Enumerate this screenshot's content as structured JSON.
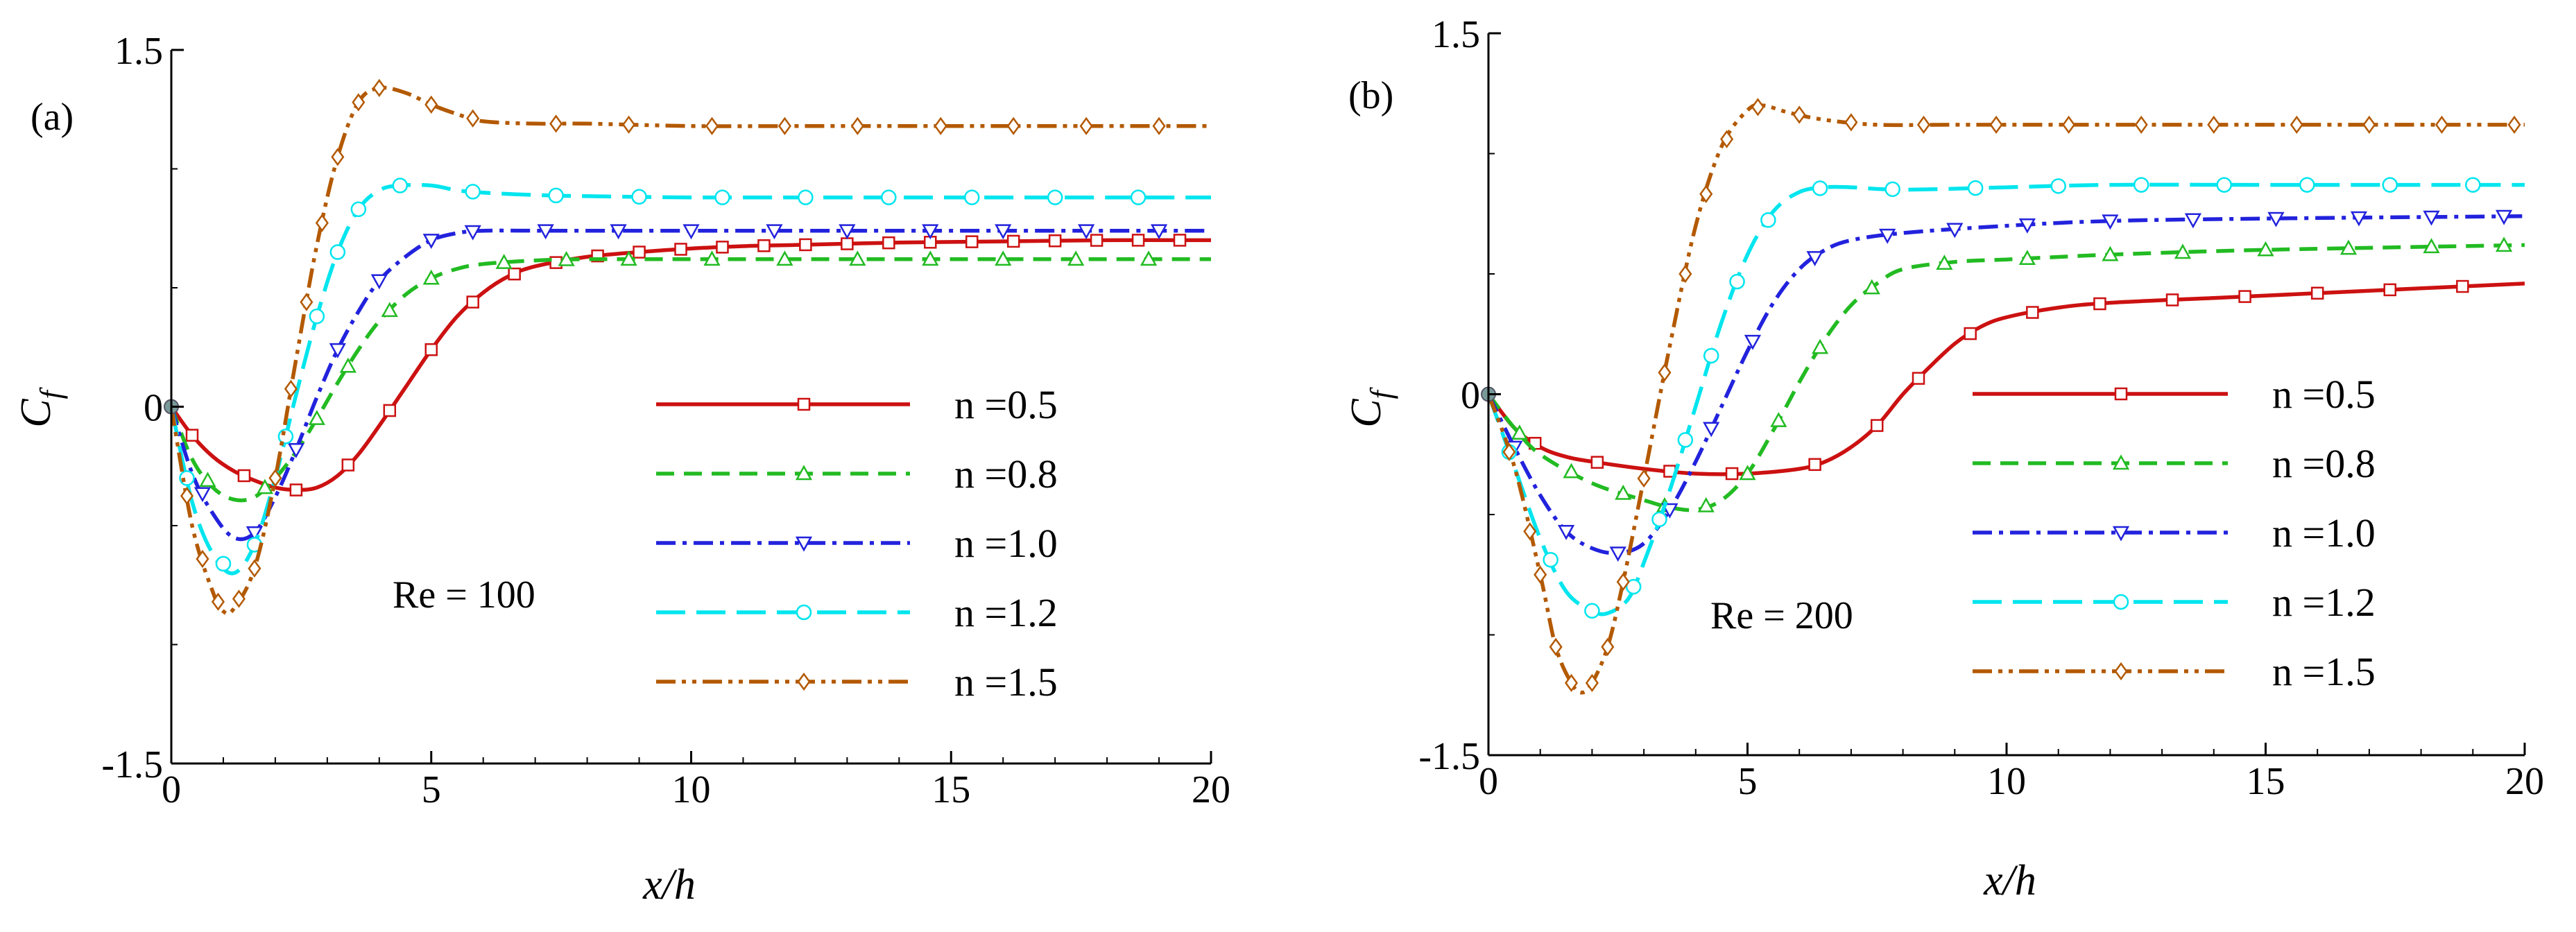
{
  "chart_data": [
    {
      "type": "line",
      "panel_label": "(a)",
      "annotation": "Re = 100",
      "xlabel": "x/h",
      "ylabel_main": "C",
      "ylabel_sub": "f",
      "xlim": [
        0,
        20
      ],
      "ylim": [
        -1.5,
        1.5
      ],
      "xticks": [
        0,
        5,
        10,
        15,
        20
      ],
      "yticks": [
        -1.5,
        0,
        1.5
      ],
      "xtick_labels": [
        "0",
        "5",
        "10",
        "15",
        "20"
      ],
      "ytick_labels": [
        "-1.5",
        "0",
        "1.5"
      ],
      "legend_position": "center-right",
      "series": [
        {
          "name": "n =0.5",
          "color": "#cc1111",
          "dash": "solid",
          "marker": "square",
          "x": [
            0,
            0.4,
            0.8,
            1.2,
            1.6,
            2.0,
            2.4,
            2.8,
            3.2,
            3.6,
            4.0,
            4.5,
            5.0,
            5.5,
            6.0,
            6.5,
            7.0,
            8.0,
            9.0,
            10,
            11,
            12,
            14,
            16,
            18,
            20
          ],
          "y": [
            0,
            -0.12,
            -0.21,
            -0.27,
            -0.31,
            -0.34,
            -0.35,
            -0.34,
            -0.29,
            -0.2,
            -0.08,
            0.08,
            0.24,
            0.38,
            0.48,
            0.55,
            0.59,
            0.63,
            0.65,
            0.665,
            0.675,
            0.68,
            0.69,
            0.695,
            0.7,
            0.7
          ],
          "marker_x": [
            0.4,
            1.4,
            2.4,
            3.4,
            4.2,
            5.0,
            5.8,
            6.6,
            7.4,
            8.2,
            9.0,
            9.8,
            10.6,
            11.4,
            12.2,
            13.0,
            13.8,
            14.6,
            15.4,
            16.2,
            17.0,
            17.8,
            18.6,
            19.4
          ]
        },
        {
          "name": "n =0.8",
          "color": "#22bb22",
          "dash": "dashed",
          "marker": "triangle-up",
          "x": [
            0,
            0.4,
            0.8,
            1.2,
            1.6,
            2.0,
            2.4,
            2.8,
            3.2,
            3.6,
            4.0,
            4.5,
            5.0,
            5.5,
            6.0,
            7.0,
            8.0,
            10,
            12,
            15,
            20
          ],
          "y": [
            0,
            -0.22,
            -0.34,
            -0.39,
            -0.38,
            -0.3,
            -0.19,
            -0.05,
            0.1,
            0.24,
            0.36,
            0.47,
            0.54,
            0.58,
            0.6,
            0.615,
            0.62,
            0.62,
            0.62,
            0.62,
            0.62
          ],
          "marker_x": [
            0.7,
            1.8,
            2.8,
            3.4,
            4.2,
            5.0,
            6.4,
            7.6,
            8.8,
            10.4,
            11.8,
            13.2,
            14.6,
            16.0,
            17.4,
            18.8
          ]
        },
        {
          "name": "n =1.0",
          "color": "#2222dd",
          "dash": "dashdot",
          "marker": "triangle-down",
          "x": [
            0,
            0.4,
            0.8,
            1.2,
            1.6,
            2.0,
            2.4,
            2.8,
            3.2,
            3.6,
            4.0,
            4.5,
            5.0,
            5.5,
            6.0,
            7.0,
            8.0,
            10,
            12,
            15,
            20
          ],
          "y": [
            0,
            -0.28,
            -0.45,
            -0.55,
            -0.53,
            -0.38,
            -0.18,
            0.04,
            0.24,
            0.4,
            0.53,
            0.63,
            0.7,
            0.73,
            0.74,
            0.74,
            0.74,
            0.74,
            0.74,
            0.74,
            0.74
          ],
          "marker_x": [
            0.6,
            1.6,
            2.4,
            3.2,
            4.0,
            5.0,
            5.8,
            7.2,
            8.6,
            10.0,
            11.6,
            13.0,
            14.6,
            16.0,
            17.6,
            19.0
          ]
        },
        {
          "name": "n =1.2",
          "color": "#00e5ee",
          "dash": "longdash",
          "marker": "circle",
          "x": [
            0,
            0.4,
            0.8,
            1.2,
            1.6,
            2.0,
            2.4,
            2.8,
            3.2,
            3.6,
            4.0,
            4.4,
            5.0,
            5.5,
            6.0,
            7.0,
            8.0,
            10,
            12,
            15,
            20
          ],
          "y": [
            0,
            -0.4,
            -0.62,
            -0.7,
            -0.58,
            -0.3,
            0.05,
            0.38,
            0.65,
            0.83,
            0.91,
            0.93,
            0.93,
            0.91,
            0.9,
            0.89,
            0.885,
            0.88,
            0.88,
            0.88,
            0.88
          ],
          "marker_x": [
            0.3,
            1.0,
            1.6,
            2.2,
            2.8,
            3.2,
            3.6,
            4.4,
            5.8,
            7.4,
            9.0,
            10.6,
            12.2,
            13.8,
            15.4,
            17.0,
            18.6
          ]
        },
        {
          "name": "n =1.5",
          "color": "#b35900",
          "dash": "dashdotdot",
          "marker": "diamond",
          "x": [
            0,
            0.4,
            0.8,
            1.0,
            1.2,
            1.6,
            2.0,
            2.4,
            2.8,
            3.2,
            3.6,
            4.0,
            4.5,
            5.0,
            5.5,
            6.0,
            7.0,
            8.0,
            10,
            12,
            15,
            20
          ],
          "y": [
            0,
            -0.5,
            -0.78,
            -0.86,
            -0.85,
            -0.68,
            -0.3,
            0.2,
            0.68,
            1.05,
            1.28,
            1.34,
            1.32,
            1.27,
            1.23,
            1.2,
            1.19,
            1.19,
            1.18,
            1.18,
            1.18,
            1.18
          ],
          "marker_x": [
            0.3,
            0.6,
            0.9,
            1.3,
            1.6,
            2.0,
            2.3,
            2.6,
            2.9,
            3.2,
            3.6,
            4.0,
            5.0,
            5.8,
            7.4,
            8.8,
            10.4,
            11.8,
            13.2,
            14.8,
            16.2,
            17.6,
            19.0
          ]
        }
      ]
    },
    {
      "type": "line",
      "panel_label": "(b)",
      "annotation": "Re = 200",
      "xlabel": "x/h",
      "ylabel_main": "C",
      "ylabel_sub": "f",
      "xlim": [
        0,
        20
      ],
      "ylim": [
        -1.5,
        1.5
      ],
      "xticks": [
        0,
        5,
        10,
        15,
        20
      ],
      "yticks": [
        -1.5,
        0,
        1.5
      ],
      "xtick_labels": [
        "0",
        "5",
        "10",
        "15",
        "20"
      ],
      "ytick_labels": [
        "-1.5",
        "0",
        "1.5"
      ],
      "legend_position": "center-right",
      "series": [
        {
          "name": "n =0.5",
          "color": "#cc1111",
          "dash": "solid",
          "marker": "square",
          "x": [
            0,
            0.5,
            1.0,
            1.5,
            2.0,
            3.0,
            4.0,
            5.0,
            6.0,
            6.5,
            7.0,
            7.5,
            8.0,
            8.5,
            9.0,
            9.5,
            10,
            11,
            12,
            14,
            16,
            18,
            20
          ],
          "y": [
            0,
            -0.14,
            -0.22,
            -0.26,
            -0.28,
            -0.31,
            -0.33,
            -0.33,
            -0.31,
            -0.28,
            -0.22,
            -0.13,
            0.0,
            0.11,
            0.21,
            0.28,
            0.32,
            0.36,
            0.38,
            0.4,
            0.42,
            0.44,
            0.46
          ],
          "marker_x": [
            0.9,
            2.1,
            3.5,
            4.7,
            6.3,
            7.5,
            8.3,
            9.3,
            10.5,
            11.8,
            13.2,
            14.6,
            16.0,
            17.4,
            18.8
          ]
        },
        {
          "name": "n =0.8",
          "color": "#22bb22",
          "dash": "dashed",
          "marker": "triangle-up",
          "x": [
            0,
            0.5,
            1.0,
            2.0,
            3.0,
            3.5,
            4.0,
            4.5,
            5.0,
            5.5,
            6.0,
            6.5,
            7.0,
            7.5,
            8.0,
            9.0,
            10,
            12,
            15,
            20
          ],
          "y": [
            0,
            -0.14,
            -0.25,
            -0.37,
            -0.44,
            -0.47,
            -0.48,
            -0.44,
            -0.33,
            -0.15,
            0.05,
            0.23,
            0.37,
            0.46,
            0.52,
            0.55,
            0.56,
            0.58,
            0.6,
            0.62
          ],
          "marker_x": [
            0.6,
            1.6,
            2.6,
            3.4,
            4.2,
            5.0,
            5.6,
            6.4,
            7.4,
            8.8,
            10.4,
            12.0,
            13.4,
            15.0,
            16.6,
            18.2,
            19.6
          ]
        },
        {
          "name": "n =1.0",
          "color": "#2222dd",
          "dash": "dashdot",
          "marker": "triangle-down",
          "x": [
            0,
            0.5,
            1.0,
            1.5,
            2.0,
            2.5,
            3.0,
            3.5,
            4.0,
            4.5,
            5.0,
            5.5,
            6.0,
            6.5,
            7.0,
            8.0,
            10,
            12,
            15,
            20
          ],
          "y": [
            0,
            -0.22,
            -0.42,
            -0.57,
            -0.64,
            -0.66,
            -0.62,
            -0.48,
            -0.28,
            -0.05,
            0.18,
            0.38,
            0.52,
            0.6,
            0.64,
            0.67,
            0.7,
            0.72,
            0.73,
            0.74
          ],
          "marker_x": [
            0.5,
            1.5,
            2.5,
            3.5,
            4.3,
            5.1,
            6.3,
            7.7,
            9.0,
            10.4,
            12.0,
            13.6,
            15.2,
            16.8,
            18.2,
            19.6
          ]
        },
        {
          "name": "n =1.2",
          "color": "#00e5ee",
          "dash": "longdash",
          "marker": "circle",
          "x": [
            0,
            0.5,
            1.0,
            1.5,
            2.0,
            2.3,
            2.7,
            3.0,
            3.5,
            4.0,
            4.5,
            5.0,
            5.5,
            6.0,
            6.5,
            7.0,
            8.0,
            10,
            12,
            15,
            20
          ],
          "y": [
            0,
            -0.3,
            -0.6,
            -0.82,
            -0.9,
            -0.91,
            -0.85,
            -0.7,
            -0.4,
            -0.05,
            0.3,
            0.58,
            0.76,
            0.84,
            0.86,
            0.86,
            0.85,
            0.86,
            0.87,
            0.87,
            0.87
          ],
          "marker_x": [
            0.4,
            1.2,
            2.0,
            2.8,
            3.3,
            3.8,
            4.3,
            4.8,
            5.4,
            6.4,
            7.8,
            9.4,
            11.0,
            12.6,
            14.2,
            15.8,
            17.4,
            19.0
          ]
        },
        {
          "name": "n =1.5",
          "color": "#b35900",
          "dash": "dashdotdot",
          "marker": "diamond",
          "x": [
            0,
            0.5,
            1.0,
            1.3,
            1.6,
            1.8,
            2.0,
            2.3,
            2.6,
            3.0,
            3.5,
            4.0,
            4.5,
            5.0,
            5.3,
            5.8,
            6.5,
            7.5,
            9.0,
            12,
            15,
            20
          ],
          "y": [
            0,
            -0.3,
            -0.75,
            -1.05,
            -1.2,
            -1.24,
            -1.2,
            -1.05,
            -0.78,
            -0.35,
            0.2,
            0.7,
            1.03,
            1.18,
            1.2,
            1.17,
            1.14,
            1.12,
            1.12,
            1.12,
            1.12,
            1.12
          ],
          "marker_x": [
            0.4,
            0.8,
            1.0,
            1.3,
            1.6,
            2.0,
            2.3,
            2.6,
            3.0,
            3.4,
            3.8,
            4.2,
            4.6,
            5.2,
            6.0,
            7.0,
            8.4,
            9.8,
            11.2,
            12.6,
            14.0,
            15.6,
            17.0,
            18.4,
            19.8
          ]
        }
      ]
    }
  ]
}
